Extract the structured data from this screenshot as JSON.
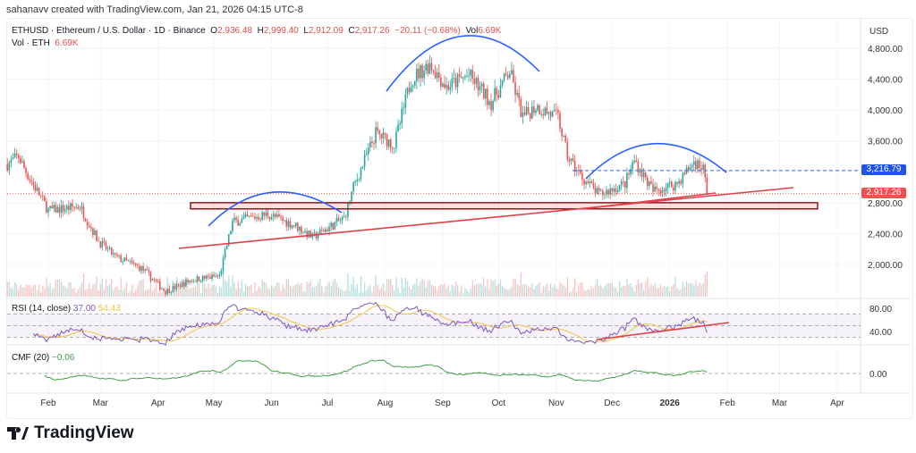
{
  "credit": "sahanavv created with TradingView.com, Jan 21, 2026 04:15 UTC-8",
  "legend": {
    "symbol": "ETHUSD · Ethereum / U.S. Dollar · 1D · Binance",
    "o_label": "O",
    "o": "2,936.48",
    "h_label": "H",
    "h": "2,999.40",
    "l_label": "L",
    "l": "2,912.09",
    "c_label": "C",
    "c": "2,917.26",
    "change": "−20.11 (−0.68%)",
    "vol_label": "Vol",
    "vol": "6.69K",
    "vol_line": "Vol · ETH",
    "vol_value": "6.69K"
  },
  "rsi": {
    "label": "RSI (14, close)",
    "value": "37.00",
    "ma": "54.43"
  },
  "cmf": {
    "label": "CMF (20)",
    "value": "−0.06"
  },
  "brand": "TradingView",
  "colors": {
    "up": "#26a69a",
    "down": "#ef5350",
    "arc": "#2962ff",
    "trend": "#e0404a",
    "rsi": "#7e57c2",
    "rsi_ma": "#f5c542",
    "cmf": "#43a047"
  },
  "chart_data": {
    "type": "candlestick",
    "currency": "USD",
    "y_ticks": [
      "4,800.00",
      "4,400.00",
      "4,000.00",
      "3,600.00",
      "2,800.00",
      "2,400.00",
      "2,000.00"
    ],
    "y_tick_values": [
      4800,
      4400,
      4000,
      3600,
      2800,
      2400,
      2000
    ],
    "ylim": [
      1700,
      5000
    ],
    "x_ticks": [
      "Feb",
      "Mar",
      "Apr",
      "May",
      "Jun",
      "Jul",
      "Aug",
      "Sep",
      "Oct",
      "Nov",
      "Dec",
      "2026",
      "Feb",
      "Mar",
      "Apr"
    ],
    "x_tick_dates": [
      "2025-02-01",
      "2025-03-01",
      "2025-04-01",
      "2025-05-01",
      "2025-06-01",
      "2025-07-01",
      "2025-08-01",
      "2025-09-01",
      "2025-10-01",
      "2025-11-01",
      "2025-12-01",
      "2026-01-01",
      "2026-02-01",
      "2026-03-01",
      "2026-04-01"
    ],
    "price_path": [
      [
        "2025-01-10",
        3300
      ],
      [
        "2025-01-16",
        3400
      ],
      [
        "2025-01-20",
        3200
      ],
      [
        "2025-02-01",
        2700
      ],
      [
        "2025-02-18",
        2750
      ],
      [
        "2025-02-28",
        2300
      ],
      [
        "2025-03-09",
        2100
      ],
      [
        "2025-03-23",
        1950
      ],
      [
        "2025-04-05",
        1650
      ],
      [
        "2025-04-19",
        1800
      ],
      [
        "2025-05-04",
        1850
      ],
      [
        "2025-05-11",
        2550
      ],
      [
        "2025-05-30",
        2650
      ],
      [
        "2025-06-14",
        2500
      ],
      [
        "2025-06-23",
        2350
      ],
      [
        "2025-07-10",
        2600
      ],
      [
        "2025-07-15",
        3000
      ],
      [
        "2025-07-27",
        3700
      ],
      [
        "2025-08-06",
        3550
      ],
      [
        "2025-08-15",
        4400
      ],
      [
        "2025-08-25",
        4600
      ],
      [
        "2025-09-03",
        4300
      ],
      [
        "2025-09-15",
        4450
      ],
      [
        "2025-09-27",
        4100
      ],
      [
        "2025-10-07",
        4500
      ],
      [
        "2025-10-14",
        3900
      ],
      [
        "2025-10-21",
        4050
      ],
      [
        "2025-11-02",
        3900
      ],
      [
        "2025-11-07",
        3400
      ],
      [
        "2025-11-14",
        3150
      ],
      [
        "2025-11-24",
        2900
      ],
      [
        "2025-12-08",
        3050
      ],
      [
        "2025-12-13",
        3350
      ],
      [
        "2025-12-23",
        2950
      ],
      [
        "2026-01-05",
        3050
      ],
      [
        "2026-01-14",
        3330
      ],
      [
        "2026-01-19",
        3250
      ],
      [
        "2026-01-21",
        2917.26
      ]
    ],
    "last_price": "2,917.26",
    "last_price_value": 2917.26,
    "level_line": "3,216.79",
    "level_value": 3216.79,
    "rsi_ticks": [
      "80.00",
      "40.00"
    ],
    "rsi_tick_values": [
      80,
      40
    ],
    "cmf_ticks": [
      "0.00"
    ],
    "cmf_tick_values": [
      0
    ],
    "support_zone": [
      2720,
      2800
    ]
  }
}
